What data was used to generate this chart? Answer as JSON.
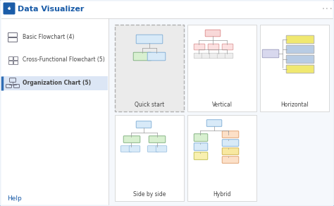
{
  "bg_outer": "#2f6db4",
  "bg_inner": "#f5f8fc",
  "header_bg": "#ffffff",
  "header_text": "Data Visualizer",
  "header_color": "#1a5ca8",
  "dots_color": "#aaaaaa",
  "sidebar_bg": "#ffffff",
  "sidebar_sel_bg": "#dce6f5",
  "sidebar_sel_border": "#2f6db4",
  "sidebar_divider": "#cccccc",
  "menu_items": [
    "Basic Flowchart (4)",
    "Cross-Functional Flowchart (5)",
    "Organization Chart (5)"
  ],
  "selected_menu": 2,
  "help_text": "Help",
  "help_color": "#1a5ca8",
  "card_bg": "#ffffff",
  "card_sel_bg": "#ebebeb",
  "card_border": "#cccccc",
  "card_sel_border": "#b0b0b0",
  "text_color": "#444444",
  "card_labels": [
    "Quick start",
    "Vertical",
    "Horizontal",
    "Side by side",
    "Hybrid"
  ],
  "card_selected": 0,
  "divider_color": "#cccccc"
}
